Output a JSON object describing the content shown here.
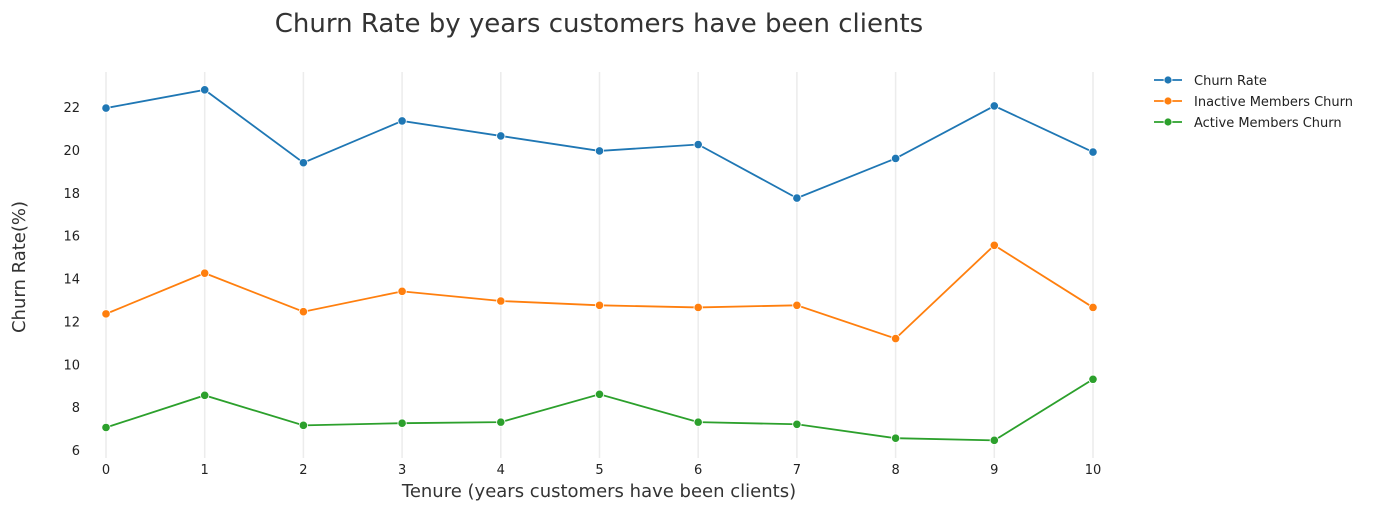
{
  "chart_data": {
    "type": "line",
    "title": "Churn Rate by years customers have been clients",
    "xlabel": "Tenure (years customers have been clients)",
    "ylabel": "Churn Rate(%)",
    "x": [
      0,
      1,
      2,
      3,
      4,
      5,
      6,
      7,
      8,
      9,
      10
    ],
    "xlim": [
      0,
      10
    ],
    "ylim": [
      6,
      23.5
    ],
    "yticks": [
      6,
      8,
      10,
      12,
      14,
      16,
      18,
      20,
      22
    ],
    "grid": "vertical",
    "legend_position": "top-right-outside",
    "series": [
      {
        "name": "Churn Rate",
        "color": "#1f77b4",
        "values": [
          21.95,
          22.8,
          19.4,
          21.35,
          20.65,
          19.95,
          20.25,
          17.75,
          19.6,
          22.05,
          19.9
        ]
      },
      {
        "name": "Inactive Members Churn",
        "color": "#ff7f0e",
        "values": [
          12.35,
          14.25,
          12.45,
          13.4,
          12.95,
          12.75,
          12.65,
          12.75,
          11.2,
          15.55,
          12.65
        ]
      },
      {
        "name": "Active Members Churn",
        "color": "#2ca02c",
        "values": [
          7.05,
          8.55,
          7.15,
          7.25,
          7.3,
          8.6,
          7.3,
          7.2,
          6.55,
          6.45,
          9.3
        ]
      }
    ]
  }
}
